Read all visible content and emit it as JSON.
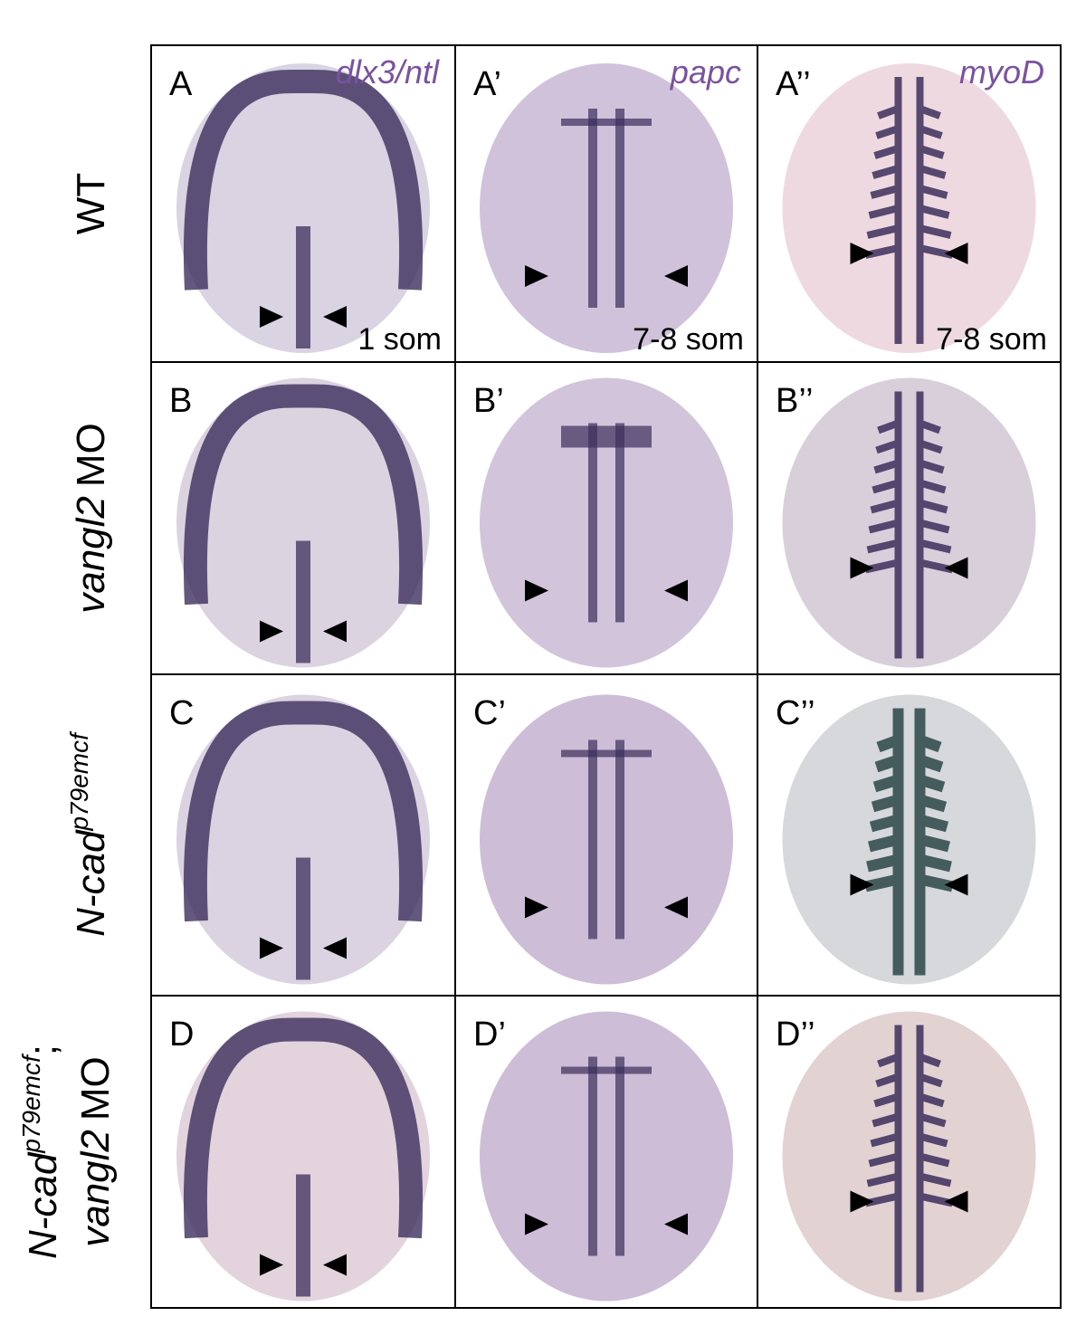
{
  "rows": [
    {
      "label_lines": [
        [
          {
            "text": "WT",
            "style": "plain"
          }
        ]
      ],
      "panels": [
        {
          "label": "A",
          "gene": "dlx3/ntl",
          "stage": "1 som"
        },
        {
          "label": "A’",
          "gene": "papc",
          "stage": "7-8 som"
        },
        {
          "label": "A’’",
          "gene": "myoD",
          "stage": "7-8 som"
        }
      ]
    },
    {
      "label_lines": [
        [
          {
            "text": "vangl2",
            "style": "italic"
          },
          {
            "text": "MO",
            "style": "plain"
          }
        ]
      ],
      "panels": [
        {
          "label": "B"
        },
        {
          "label": "B’"
        },
        {
          "label": "B’’"
        }
      ]
    },
    {
      "label_lines": [
        [
          {
            "text": "N-cad",
            "style": "italic"
          },
          {
            "text": "p79emcf",
            "style": "italic-sup"
          }
        ]
      ],
      "panels": [
        {
          "label": "C"
        },
        {
          "label": "C’"
        },
        {
          "label": "C’’"
        }
      ]
    },
    {
      "label_lines": [
        [
          {
            "text": "N-cad",
            "style": "italic"
          },
          {
            "text": "p79emcf",
            "style": "italic-sup"
          },
          {
            "text": ";",
            "style": "plain"
          }
        ],
        [
          {
            "text": "vangl2",
            "style": "italic"
          },
          {
            "text": "MO",
            "style": "plain"
          }
        ]
      ],
      "panels": [
        {
          "label": "D"
        },
        {
          "label": "D’"
        },
        {
          "label": "D’’"
        }
      ]
    }
  ]
}
